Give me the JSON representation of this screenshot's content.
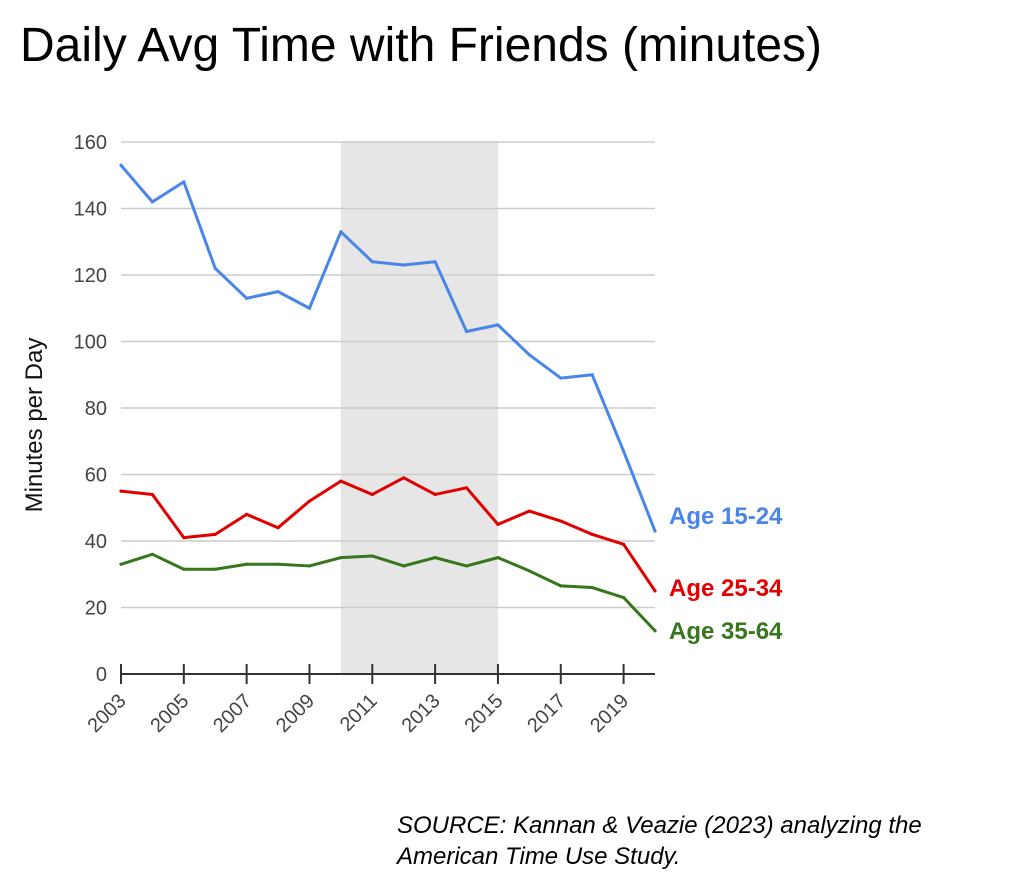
{
  "chart_data": {
    "type": "line",
    "title": "Daily Avg Time with Friends (minutes)",
    "ylabel": "Minutes per Day",
    "xlabel": "",
    "x": [
      2003,
      2004,
      2005,
      2006,
      2007,
      2008,
      2009,
      2010,
      2011,
      2012,
      2013,
      2014,
      2015,
      2016,
      2017,
      2018,
      2019,
      2020
    ],
    "xlim": [
      2003,
      2020
    ],
    "ylim": [
      0,
      160
    ],
    "yticks": [
      0,
      20,
      40,
      60,
      80,
      100,
      120,
      140,
      160
    ],
    "xtick_labels": [
      "2003",
      "2005",
      "2007",
      "2009",
      "2011",
      "2013",
      "2015",
      "2017",
      "2019"
    ],
    "grid": true,
    "legend": "inline-right",
    "shaded_region": [
      2010,
      2015
    ],
    "shaded_color": "#e6e6e6",
    "series": [
      {
        "name": "Age 15-24",
        "color": "#4a86e8",
        "values": [
          153,
          142,
          148,
          122,
          113,
          115,
          110,
          133,
          124,
          123,
          124,
          103,
          105,
          96,
          89,
          90,
          67,
          43
        ]
      },
      {
        "name": "Age 25-34",
        "color": "#e00000",
        "values": [
          55,
          54,
          41,
          42,
          48,
          44,
          52,
          58,
          54,
          59,
          54,
          56,
          45,
          49,
          46,
          42,
          39,
          25
        ]
      },
      {
        "name": "Age 35-64",
        "color": "#38761d",
        "values": [
          33,
          36,
          31.5,
          31.5,
          33,
          33,
          32.5,
          35,
          35.5,
          32.5,
          35,
          32.5,
          35,
          31,
          26.5,
          26,
          23,
          13
        ]
      }
    ]
  },
  "source": {
    "line1": "SOURCE: Kannan & Veazie (2023) analyzing the",
    "line2": "American Time Use Study."
  }
}
